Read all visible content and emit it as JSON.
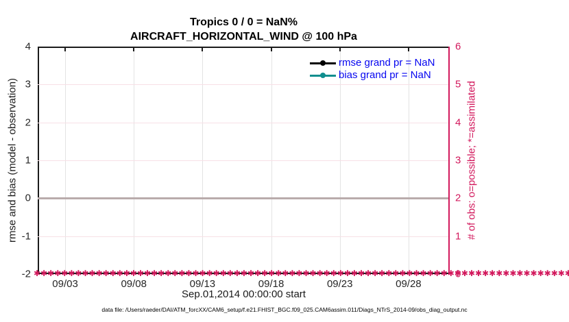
{
  "title": {
    "line1": "Tropics 0 / 0 = NaN%",
    "line2": "AIRCRAFT_HORIZONTAL_WIND @ 100 hPa"
  },
  "axes": {
    "xlabel": "Sep.01,2014 00:00:00 start",
    "ylabel_left": "rmse and bias (model - observation)",
    "ylabel_right": "# of obs: o=possible; *=assimilated"
  },
  "legend": [
    {
      "label": "rmse grand pr = NaN",
      "color": "#000000"
    },
    {
      "label": "bias grand pr = NaN",
      "color": "#0f8e8e"
    }
  ],
  "footer": "data file: /Users/raeder/DAI/ATM_forcXX/CAM6_setup/f.e21.FHIST_BGC.f09_025.CAM6assim.011/Diags_NTrS_2014-09/obs_diag_output.nc",
  "colors": {
    "accent_pink": "#d2185c",
    "teal": "#0f8e8e",
    "legend_text_blue": "#0505f0",
    "zero_line_gray": "#b9abab",
    "grid_vertical": "#e3e3e3",
    "grid_horizontal": "#f7e0e6",
    "axis_black": "#1a1a1a"
  },
  "chart_data": {
    "type": "line",
    "title": "Tropics 0 / 0 = NaN%",
    "subtitle": "AIRCRAFT_HORIZONTAL_WIND @ 100 hPa",
    "xlabel": "Sep.01,2014 00:00:00 start",
    "x_axis": {
      "start_time": "Sep.01,2014 00:00:00",
      "domain_days": [
        0,
        30
      ],
      "tick_labels": [
        "09/03",
        "09/08",
        "09/13",
        "09/18",
        "09/23",
        "09/28"
      ],
      "tick_days": [
        2,
        7,
        12,
        17,
        22,
        27
      ]
    },
    "y_left": {
      "label": "rmse and bias (model - observation)",
      "range": [
        -2,
        4
      ],
      "ticks": [
        -2,
        -1,
        0,
        1,
        2,
        3,
        4
      ]
    },
    "y_right": {
      "label": "# of obs: o=possible; *=assimilated",
      "range": [
        0,
        6
      ],
      "ticks": [
        0,
        1,
        2,
        3,
        4,
        5,
        6
      ]
    },
    "series": [
      {
        "name": "rmse",
        "legend_label": "rmse grand pr = NaN",
        "color": "#000000",
        "axis": "left",
        "values_note": "all NaN - no curve drawn"
      },
      {
        "name": "bias",
        "legend_label": "bias grand pr = NaN",
        "color": "#0f8e8e",
        "axis": "left",
        "values_note": "all NaN - no curve drawn"
      },
      {
        "name": "number of obs (o=possible, *=assimilated)",
        "color": "#d2185c",
        "axis": "right",
        "marker": "star",
        "constant_value": 0,
        "x_span_days": [
          0,
          30
        ],
        "values_note": "0 observations at every time bin - dense marker band along bottom axis"
      }
    ],
    "zero_reference_line": {
      "y_left": 0,
      "color": "#b9abab"
    },
    "grid": true,
    "legend_position": "top-right-inside",
    "legend_box": false
  },
  "marker_glyph": "✱"
}
